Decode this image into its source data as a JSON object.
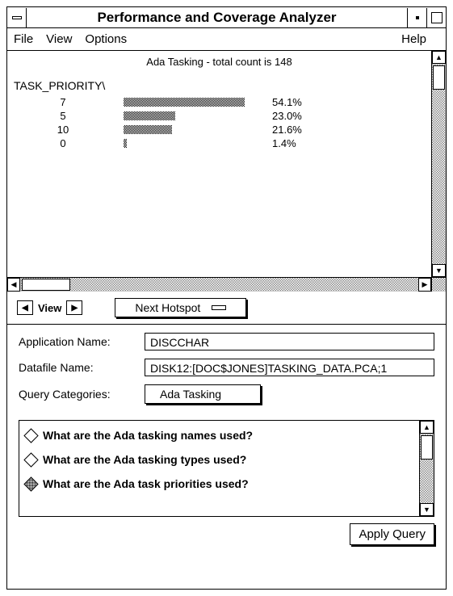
{
  "window": {
    "title": "Performance and Coverage Analyzer"
  },
  "menu": {
    "file": "File",
    "view": "View",
    "options": "Options",
    "help": "Help"
  },
  "chart": {
    "type": "bar",
    "title": "Ada Tasking - total count is 148",
    "header": "TASK_PRIORITY\\",
    "bar_color": "#808080",
    "background_color": "#ffffff",
    "label_fontsize": 13,
    "max_percent": 100,
    "rows": [
      {
        "label": "7",
        "percent": 54.1,
        "percent_text": "54.1%"
      },
      {
        "label": "5",
        "percent": 23.0,
        "percent_text": "23.0%"
      },
      {
        "label": "10",
        "percent": 21.6,
        "percent_text": "21.6%"
      },
      {
        "label": "0",
        "percent": 1.4,
        "percent_text": "1.4%"
      }
    ]
  },
  "viewctrl": {
    "label": "View"
  },
  "buttons": {
    "next_hotspot": "Next Hotspot",
    "apply_query": "Apply Query"
  },
  "form": {
    "app_label": "Application Name:",
    "app_value": "DISCCHAR",
    "datafile_label": "Datafile Name:",
    "datafile_value": "DISK12:[DOC$JONES]TASKING_DATA.PCA;1",
    "query_cat_label": "Query Categories:",
    "query_cat_value": "Ada Tasking"
  },
  "queries": [
    {
      "text": "What are the Ada tasking names used?",
      "selected": false
    },
    {
      "text": "What are the Ada tasking types used?",
      "selected": false
    },
    {
      "text": "What are the Ada task priorities used?",
      "selected": true
    }
  ]
}
